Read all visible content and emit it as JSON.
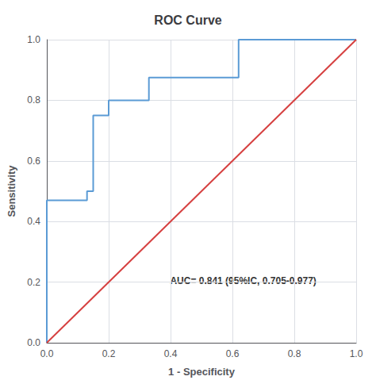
{
  "chart_data": {
    "type": "line",
    "title": "ROC Curve",
    "xlabel": "1 - Specificity",
    "ylabel": "Sensitivity",
    "annotations": [
      "AUC= 0.841 (95%IC, 0.705-0.977)"
    ],
    "series": [
      {
        "x": [
          0.0,
          0.0,
          0.13,
          0.13,
          0.15,
          0.15,
          0.2,
          0.2,
          0.33,
          0.33,
          0.62,
          0.62,
          1.0
        ],
        "values": [
          0.0,
          0.47,
          0.47,
          0.5,
          0.5,
          0.75,
          0.75,
          0.8,
          0.8,
          0.875,
          0.875,
          1.0,
          1.0
        ],
        "color": "#5b9bd5"
      },
      {
        "x": [
          0,
          1
        ],
        "values": [
          0,
          1
        ],
        "color": "#d64040"
      }
    ],
    "xlim": [
      0.0,
      1.0
    ],
    "ylim": [
      0.0,
      1.0
    ],
    "xticks": [
      {
        "value": 0,
        "label": "0.0"
      },
      0.2,
      0.4,
      0.6,
      0.8,
      {
        "value": 1,
        "label": "1.0"
      }
    ],
    "yticks": [
      {
        "value": 0,
        "label": "0.0"
      },
      0.2,
      0.4,
      0.6,
      0.8,
      {
        "value": 1,
        "label": "1.0"
      }
    ],
    "grid": true
  }
}
